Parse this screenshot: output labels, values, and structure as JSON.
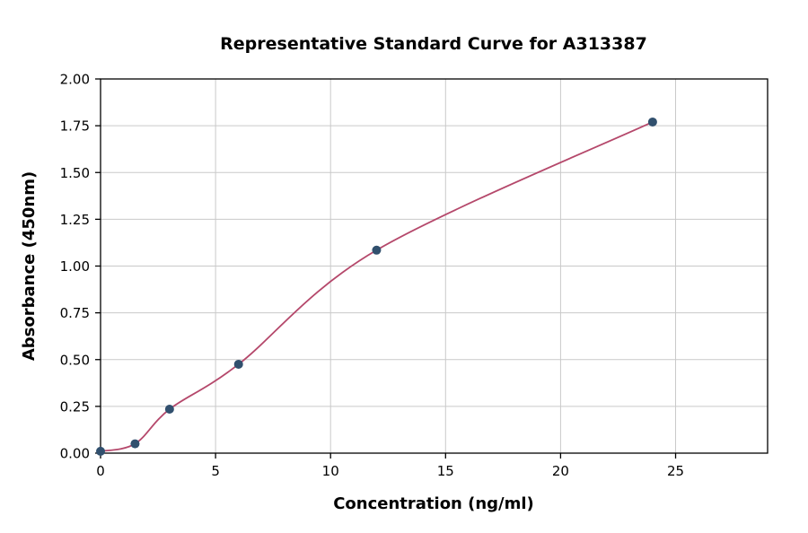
{
  "chart_data": {
    "type": "scatter",
    "title": "Representative Standard Curve for A313387",
    "xlabel": "Concentration (ng/ml)",
    "ylabel": "Absorbance (450nm)",
    "xlim": [
      0,
      29
    ],
    "ylim": [
      0,
      2.0
    ],
    "x_ticks": [
      0,
      5,
      10,
      15,
      20,
      25
    ],
    "x_tick_labels": [
      "0",
      "5",
      "10",
      "15",
      "20",
      "25"
    ],
    "y_ticks": [
      0.0,
      0.25,
      0.5,
      0.75,
      1.0,
      1.25,
      1.5,
      1.75,
      2.0
    ],
    "y_tick_labels": [
      "0.00",
      "0.25",
      "0.50",
      "0.75",
      "1.00",
      "1.25",
      "1.50",
      "1.75",
      "2.00"
    ],
    "grid": true,
    "legend": "none",
    "points": [
      {
        "x": 0,
        "y": 0.01
      },
      {
        "x": 1.5,
        "y": 0.05
      },
      {
        "x": 3,
        "y": 0.235
      },
      {
        "x": 6,
        "y": 0.475
      },
      {
        "x": 12,
        "y": 1.085
      },
      {
        "x": 24,
        "y": 1.77
      }
    ],
    "colors": {
      "curve": "#b5486b",
      "point": "#31506e",
      "grid": "#c9c9c9",
      "spine": "#000000"
    }
  }
}
